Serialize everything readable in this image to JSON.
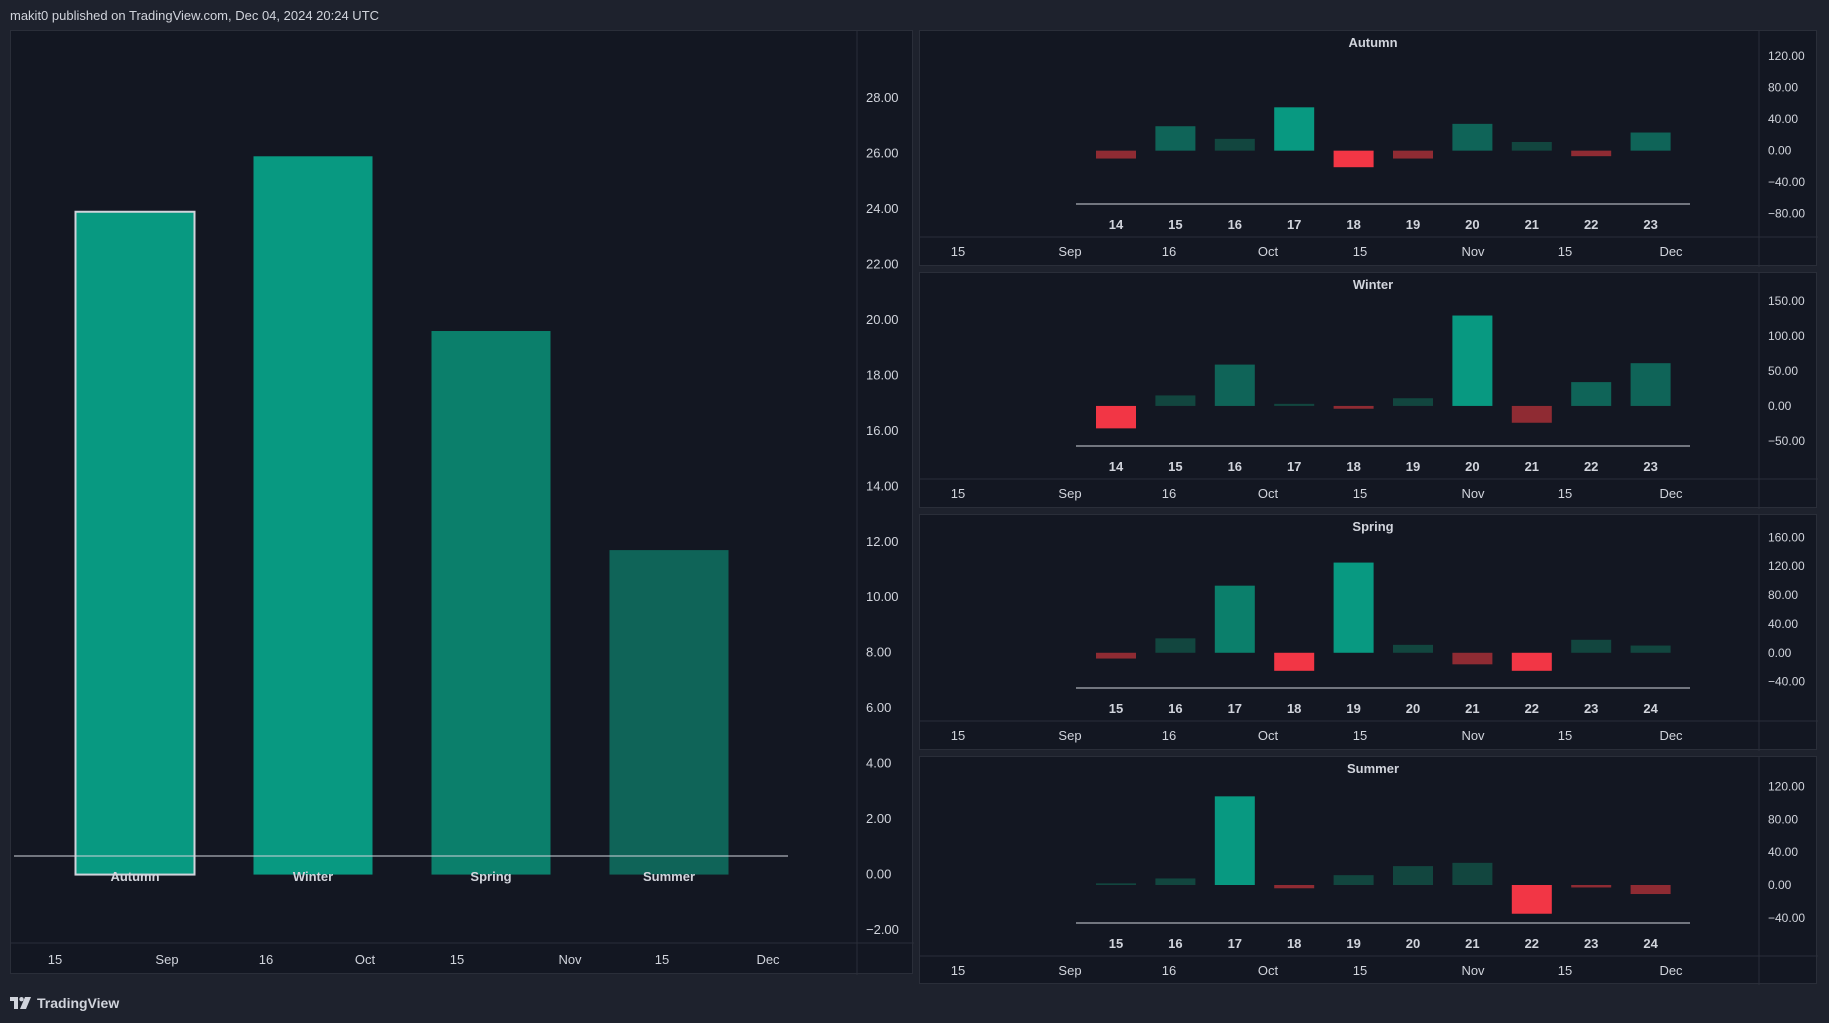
{
  "header": {
    "published": "makit0 published on TradingView.com, Dec 04, 2024 20:24 UTC"
  },
  "footer": {
    "brand": "TradingView",
    "logo_icon": "tradingview-logo-icon"
  },
  "time_axis_labels": [
    "15",
    "Sep",
    "16",
    "Oct",
    "15",
    "Nov",
    "15",
    "Dec"
  ],
  "colors": {
    "background": "#131722",
    "page": "#1e222d",
    "green_bright": "#089981",
    "green_mid": "#0b7f6b",
    "green_dark": "#0f6458",
    "green_darker": "#12463f",
    "red_bright": "#f23645",
    "red_dim": "#8f2b33",
    "highlight_border": "#d1d4dc"
  },
  "chart_data": [
    {
      "type": "bar",
      "categories": [
        "Autumn",
        "Winter",
        "Spring",
        "Summer"
      ],
      "values": [
        23.9,
        25.9,
        19.6,
        11.7
      ],
      "colors": [
        "#089981",
        "#089981",
        "#0b7f6b",
        "#0f6458"
      ],
      "highlight_index": 0,
      "yticks": [
        "28.00",
        "26.00",
        "24.00",
        "22.00",
        "20.00",
        "18.00",
        "16.00",
        "14.00",
        "12.00",
        "10.00",
        "8.00",
        "6.00",
        "4.00",
        "2.00",
        "0.00",
        "−2.00"
      ],
      "ylim": [
        -2.9,
        29.3
      ]
    },
    {
      "type": "bar",
      "title": "Autumn",
      "categories": [
        "14",
        "15",
        "16",
        "17",
        "18",
        "19",
        "20",
        "21",
        "22",
        "23"
      ],
      "values": [
        -10,
        31,
        15,
        55,
        -21,
        -10,
        34,
        11,
        -7,
        23
      ],
      "colors": [
        "#8f2b33",
        "#0f6458",
        "#12463f",
        "#089981",
        "#f23645",
        "#8f2b33",
        "#0f6458",
        "#12463f",
        "#8f2b33",
        "#0f6458"
      ],
      "yticks": [
        "120.00",
        "80.00",
        "40.00",
        "0.00",
        "−40.00",
        "−80.00"
      ],
      "ylim": [
        -88,
        129
      ]
    },
    {
      "type": "bar",
      "title": "Winter",
      "categories": [
        "14",
        "15",
        "16",
        "17",
        "18",
        "19",
        "20",
        "21",
        "22",
        "23"
      ],
      "values": [
        -32,
        15,
        59,
        3,
        -4,
        11,
        129,
        -24,
        34,
        61
      ],
      "colors": [
        "#f23645",
        "#12463f",
        "#0f6458",
        "#12463f",
        "#8f2b33",
        "#12463f",
        "#089981",
        "#8f2b33",
        "#0f6458",
        "#0f6458"
      ],
      "yticks": [
        "150.00",
        "100.00",
        "50.00",
        "0.00",
        "−50.00"
      ],
      "ylim": [
        -80,
        164
      ]
    },
    {
      "type": "bar",
      "title": "Spring",
      "categories": [
        "15",
        "16",
        "17",
        "18",
        "19",
        "20",
        "21",
        "22",
        "23",
        "24"
      ],
      "values": [
        -8,
        20,
        93,
        -25,
        125,
        11,
        -16,
        -25,
        18,
        10
      ],
      "colors": [
        "#8f2b33",
        "#12463f",
        "#0b7f6b",
        "#f23645",
        "#089981",
        "#12463f",
        "#8f2b33",
        "#f23645",
        "#12463f",
        "#12463f"
      ],
      "yticks": [
        "160.00",
        "120.00",
        "80.00",
        "40.00",
        "0.00",
        "−40.00"
      ],
      "ylim": [
        -71,
        166
      ]
    },
    {
      "type": "bar",
      "title": "Summer",
      "categories": [
        "15",
        "16",
        "17",
        "18",
        "19",
        "20",
        "21",
        "22",
        "23",
        "24"
      ],
      "values": [
        2,
        8,
        108,
        -4,
        12,
        23,
        27,
        -35,
        -3,
        -11
      ],
      "colors": [
        "#12463f",
        "#12463f",
        "#089981",
        "#8f2b33",
        "#12463f",
        "#12463f",
        "#12463f",
        "#f23645",
        "#8f2b33",
        "#8f2b33"
      ],
      "yticks": [
        "120.00",
        "80.00",
        "40.00",
        "0.00",
        "−40.00"
      ],
      "ylim": [
        -67,
        134
      ]
    }
  ]
}
